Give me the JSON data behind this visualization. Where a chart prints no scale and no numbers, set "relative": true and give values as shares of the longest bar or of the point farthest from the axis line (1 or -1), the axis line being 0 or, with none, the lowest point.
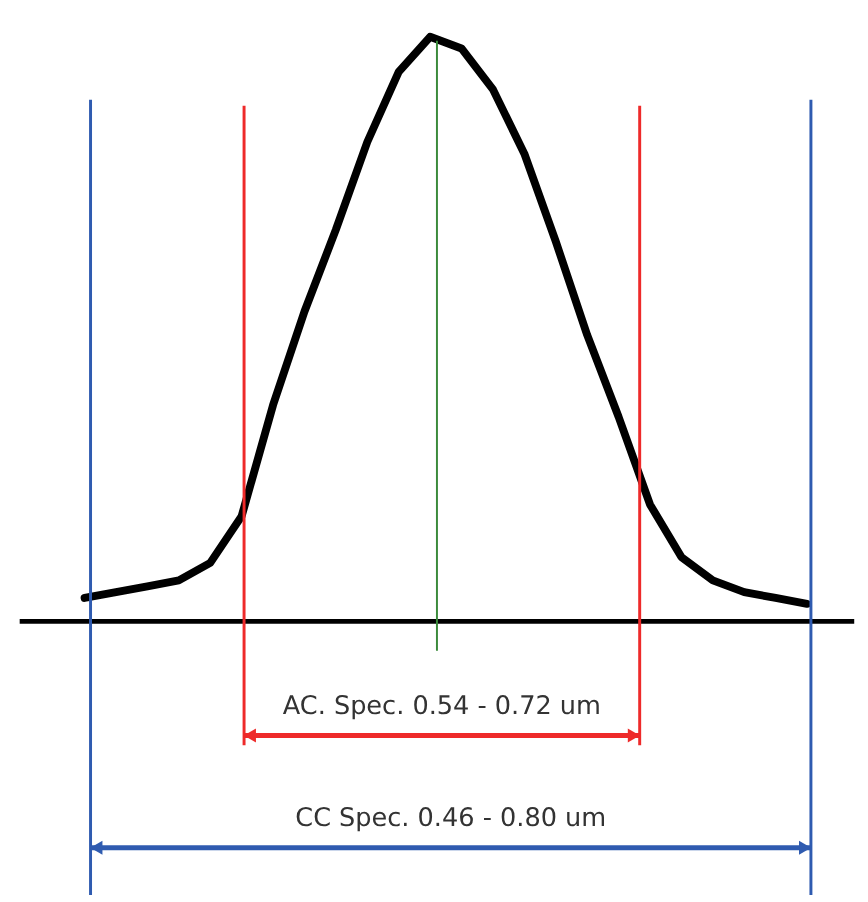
{
  "chart_data": {
    "type": "line",
    "relative": true,
    "marker": "none",
    "line_style": "solid",
    "categories": [
      null,
      null,
      null,
      null,
      null,
      null,
      null,
      null,
      null,
      null,
      null,
      null,
      null,
      null,
      null,
      null,
      null,
      null,
      null,
      null,
      null,
      null,
      null,
      null
    ],
    "series": [
      {
        "color": "#000000",
        "values": [
          0.04,
          0.05,
          0.06,
          0.07,
          0.1,
          0.18,
          0.37,
          0.53,
          0.67,
          0.82,
          0.94,
          1.0,
          0.98,
          0.91,
          0.8,
          0.65,
          0.49,
          0.35,
          0.2,
          0.11,
          0.07,
          0.05,
          0.04,
          0.03
        ]
      }
    ],
    "annotations": [
      "AC. Spec. 0.54 - 0.72 um",
      "CC Spec. 0.46 - 0.80 um"
    ]
  }
}
